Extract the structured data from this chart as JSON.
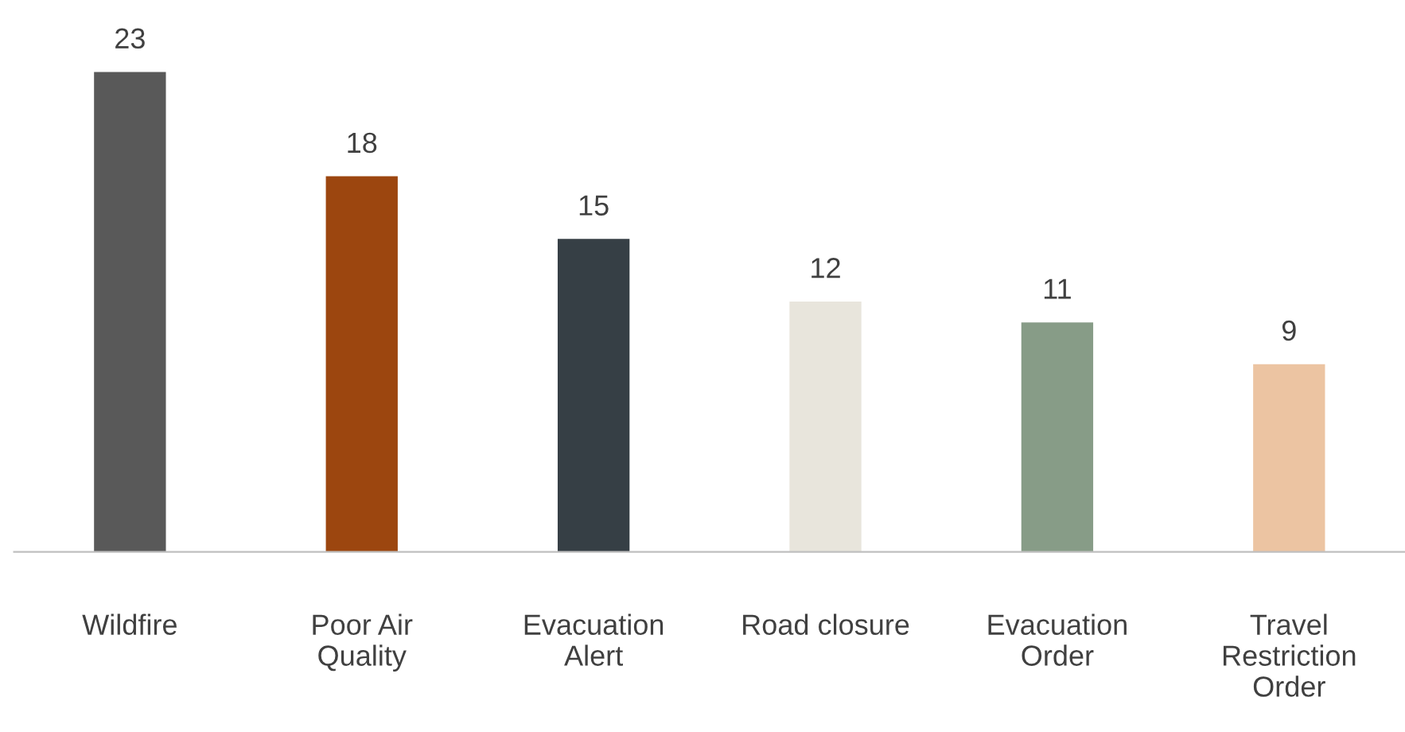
{
  "chart_data": {
    "type": "bar",
    "categories": [
      "Wildfire",
      "Poor Air\nQuality",
      "Evacuation\nAlert",
      "Road closure",
      "Evacuation\nOrder",
      "Travel\nRestriction\nOrder"
    ],
    "values": [
      23,
      18,
      15,
      12,
      11,
      9
    ],
    "colors": [
      "#595959",
      "#9c460f",
      "#363f45",
      "#e8e5dc",
      "#879c87",
      "#ecc4a2"
    ],
    "data_labels": true,
    "grid": false,
    "legend": false
  }
}
